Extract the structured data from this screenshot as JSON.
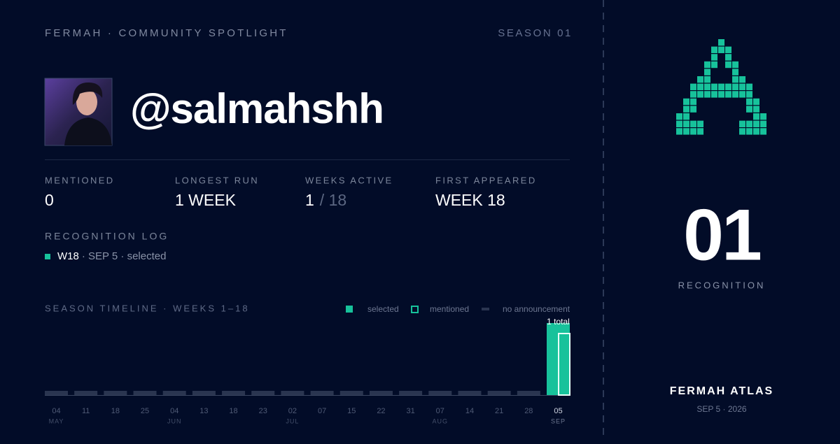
{
  "header": {
    "brand": "FERMAH · COMMUNITY SPOTLIGHT",
    "season": "SEASON 01"
  },
  "profile": {
    "handle": "@salmahshh"
  },
  "stats": [
    {
      "label": "MENTIONED",
      "value": "0"
    },
    {
      "label": "LONGEST RUN",
      "value": "1 WEEK"
    },
    {
      "label": "WEEKS ACTIVE",
      "value": "1",
      "suffix": "/ 18"
    },
    {
      "label": "FIRST APPEARED",
      "value": "WEEK 18"
    }
  ],
  "log": {
    "title": "RECOGNITION LOG",
    "entries": [
      {
        "week": "W18",
        "detail": "· SEP 5 · selected"
      }
    ]
  },
  "chart_data": {
    "type": "bar",
    "title": "SEASON TIMELINE · WEEKS 1–18",
    "legend": [
      {
        "name": "selected",
        "color": "#17c29b"
      },
      {
        "name": "mentioned",
        "color": "#17c29b"
      },
      {
        "name": "no announcement",
        "color": "#2a3550"
      }
    ],
    "categories": [
      "04",
      "11",
      "18",
      "25",
      "04",
      "13",
      "18",
      "23",
      "02",
      "07",
      "15",
      "22",
      "31",
      "07",
      "14",
      "21",
      "28",
      "05"
    ],
    "months": [
      "MAY",
      null,
      null,
      null,
      "JUN",
      null,
      null,
      null,
      "JUL",
      null,
      null,
      null,
      null,
      "AUG",
      null,
      null,
      null,
      "SEP"
    ],
    "values": [
      0,
      0,
      0,
      0,
      0,
      0,
      0,
      0,
      0,
      0,
      0,
      0,
      0,
      0,
      0,
      0,
      0,
      1
    ],
    "value_labels": [
      null,
      null,
      null,
      null,
      null,
      null,
      null,
      null,
      null,
      null,
      null,
      null,
      null,
      null,
      null,
      null,
      null,
      "1 total"
    ],
    "color": "#17c29b",
    "empty_color": "#2a3550",
    "ylim": [
      0,
      1
    ]
  },
  "aside": {
    "count": "01",
    "count_label": "RECOGNITION",
    "brand": "FERMAH ATLAS",
    "date": "SEP 5 · 2026"
  }
}
